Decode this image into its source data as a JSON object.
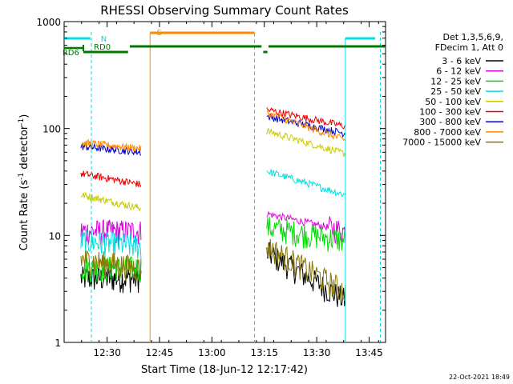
{
  "chart_data": {
    "type": "line",
    "title": "RHESSI Observing Summary Count Rates",
    "xlabel": "Start Time (18-Jun-12 12:17:42)",
    "ylabel_main": "Count Rate (s",
    "ylabel_sup1": "-1",
    "ylabel_mid": " detector",
    "ylabel_sup2": "-1",
    "ylabel_end": ")",
    "yscale": "log",
    "ylim": [
      1,
      1000
    ],
    "xlim_minutes": [
      0,
      92
    ],
    "x_tick_labels": [
      "12:30",
      "12:45",
      "13:00",
      "13:15",
      "13:30",
      "13:45"
    ],
    "x_tick_minutes": [
      12.3,
      27.3,
      42.3,
      57.3,
      72.3,
      87.3
    ],
    "y_tick_labels": [
      {
        "label": "1000",
        "value": 1000
      },
      {
        "label": "100",
        "value": 100
      },
      {
        "label": "10",
        "value": 10
      },
      {
        "label": "1",
        "value": 1
      }
    ],
    "legend_header": [
      "Det 1,3,5,6,9,",
      "FDecim 1, Att 0"
    ],
    "series": [
      {
        "name": "3 - 6 keV",
        "color": "#000000",
        "seg1": [
          4,
          4
        ],
        "seg2": [
          7,
          2.5
        ]
      },
      {
        "name": "6 - 12 keV",
        "color": "#dd00dd",
        "seg1": [
          11,
          11
        ],
        "seg2": [
          16,
          11
        ]
      },
      {
        "name": "12 - 25 keV",
        "color": "#00dd00",
        "seg1": [
          5,
          5
        ],
        "seg2": [
          12,
          9
        ]
      },
      {
        "name": "25 - 50 keV",
        "color": "#00e0e0",
        "seg1": [
          9,
          8
        ],
        "seg2": [
          40,
          24
        ]
      },
      {
        "name": "50 - 100 keV",
        "color": "#cccc00",
        "seg1": [
          24,
          18
        ],
        "seg2": [
          95,
          58
        ]
      },
      {
        "name": "100 - 300 keV",
        "color": "#ee0000",
        "seg1": [
          38,
          30
        ],
        "seg2": [
          150,
          105
        ]
      },
      {
        "name": "300 - 800 keV",
        "color": "#0000cc",
        "seg1": [
          68,
          60
        ],
        "seg2": [
          130,
          90
        ]
      },
      {
        "name": "800 - 7000 keV",
        "color": "#ff8800",
        "seg1": [
          74,
          65
        ],
        "seg2": [
          140,
          78
        ]
      },
      {
        "name": "7000 - 15000 keV",
        "color": "#887700",
        "seg1": [
          6,
          5
        ],
        "seg2": [
          8,
          3
        ]
      }
    ],
    "annotations": [
      {
        "label": "N",
        "color": "#00e0e0"
      },
      {
        "label": "S",
        "color": "#ff8800"
      },
      {
        "label": "RD0",
        "color": "#007700"
      },
      {
        "label": "RD6",
        "color": "#007700"
      }
    ]
  },
  "footer_date": "22-Oct-2021 18:49"
}
